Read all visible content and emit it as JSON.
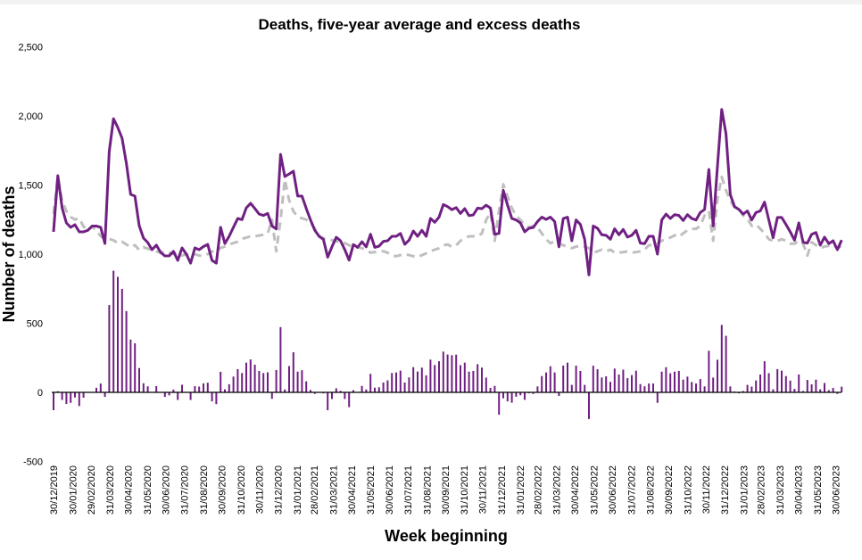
{
  "chart_data": {
    "type": "line",
    "title": "Deaths, five-year average and excess deaths",
    "xlabel": "Week beginning",
    "ylabel": "Number of deaths",
    "ylim": [
      -500,
      2500
    ],
    "yticks": [
      2500,
      2000,
      1500,
      1000,
      500,
      0,
      -500
    ],
    "ytick_labels": [
      "2,500",
      "2,000",
      "1,500",
      "1,000",
      "500",
      "0",
      "-500"
    ],
    "grid": false,
    "legend": "none",
    "x_start": "30/12/2019",
    "x_interval": "weekly",
    "xtick_labels": [
      "30/12/2019",
      "30/01/2020",
      "29/02/2020",
      "31/03/2020",
      "30/04/2020",
      "31/05/2020",
      "30/06/2020",
      "31/07/2020",
      "31/08/2020",
      "30/09/2020",
      "31/10/2020",
      "30/11/2020",
      "31/12/2020",
      "31/01/2021",
      "28/02/2021",
      "31/03/2021",
      "30/04/2021",
      "31/05/2021",
      "30/06/2021",
      "31/07/2021",
      "31/08/2021",
      "30/09/2021",
      "31/10/2021",
      "30/11/2021",
      "31/12/2021",
      "31/01/2022",
      "28/02/2022",
      "31/03/2022",
      "30/04/2022",
      "31/05/2022",
      "30/06/2022",
      "31/07/2022",
      "31/08/2022",
      "30/09/2022",
      "31/10/2022",
      "30/11/2022",
      "31/12/2022",
      "31/01/2023",
      "28/02/2023",
      "31/03/2023",
      "30/04/2023",
      "31/05/2023",
      "30/06/2023"
    ],
    "colors": {
      "deaths": "#702082",
      "average": "#bfbfbf",
      "excess": "#702082",
      "zero_line": "#000000"
    },
    "series": [
      {
        "key": "deaths",
        "style": "solid-line",
        "values": [
          1161,
          1568,
          1335,
          1226,
          1194,
          1213,
          1161,
          1161,
          1172,
          1203,
          1203,
          1194,
          1077,
          1742,
          1980,
          1916,
          1839,
          1658,
          1432,
          1420,
          1206,
          1116,
          1084,
          1032,
          1065,
          1013,
          987,
          988,
          1020,
          955,
          1045,
          1000,
          935,
          1045,
          1032,
          1055,
          1070,
          955,
          935,
          1194,
          1077,
          1129,
          1194,
          1258,
          1250,
          1335,
          1368,
          1330,
          1290,
          1280,
          1295,
          1203,
          1182,
          1722,
          1561,
          1580,
          1600,
          1420,
          1420,
          1330,
          1247,
          1172,
          1129,
          1107,
          978,
          1053,
          1122,
          1097,
          1032,
          957,
          1069,
          1049,
          1090,
          1053,
          1144,
          1049,
          1058,
          1092,
          1097,
          1129,
          1129,
          1150,
          1071,
          1101,
          1167,
          1129,
          1172,
          1129,
          1258,
          1230,
          1268,
          1359,
          1344,
          1322,
          1337,
          1294,
          1329,
          1279,
          1284,
          1333,
          1329,
          1354,
          1333,
          1144,
          1150,
          1462,
          1354,
          1258,
          1247,
          1226,
          1161,
          1187,
          1193,
          1236,
          1268,
          1251,
          1268,
          1236,
          1053,
          1258,
          1268,
          1097,
          1247,
          1215,
          1108,
          850,
          1204,
          1187,
          1140,
          1136,
          1108,
          1183,
          1140,
          1179,
          1123,
          1136,
          1172,
          1080,
          1076,
          1129,
          1129,
          1000,
          1247,
          1290,
          1258,
          1286,
          1280,
          1243,
          1286,
          1258,
          1247,
          1301,
          1323,
          1613,
          1204,
          1634,
          2047,
          1871,
          1430,
          1344,
          1323,
          1290,
          1312,
          1247,
          1301,
          1312,
          1376,
          1247,
          1119,
          1265,
          1265,
          1215,
          1161,
          1101,
          1226,
          1086,
          1080,
          1144,
          1157,
          1065,
          1123,
          1076,
          1097,
          1032,
          1101
        ]
      },
      {
        "key": "average",
        "style": "dashed-line",
        "values": [
          1290,
          1560,
          1390,
          1310,
          1270,
          1250,
          1260,
          1200,
          1170,
          1200,
          1170,
          1130,
          1110,
          1110,
          1100,
          1080,
          1090,
          1070,
          1050,
          1065,
          1030,
          1050,
          1040,
          1030,
          1020,
          1010,
          1020,
          1010,
          1000,
          1010,
          990,
          1000,
          990,
          1000,
          990,
          990,
          1000,
          1020,
          1020,
          1045,
          1055,
          1070,
          1080,
          1090,
          1110,
          1120,
          1130,
          1130,
          1135,
          1140,
          1150,
          1250,
          1020,
          1250,
          1540,
          1390,
          1310,
          1270,
          1260,
          1250,
          1230,
          1183,
          1129,
          1114,
          1107,
          1101,
          1092,
          1086,
          1080,
          1064,
          1053,
          1049,
          1043,
          1032,
          1010,
          1015,
          1021,
          1021,
          1010,
          989,
          985,
          993,
          1000,
          993,
          985,
          978,
          993,
          1006,
          1021,
          1032,
          1043,
          1064,
          1070,
          1053,
          1064,
          1097,
          1114,
          1129,
          1129,
          1129,
          1150,
          1247,
          1301,
          1097,
          1312,
          1505,
          1419,
          1333,
          1279,
          1247,
          1215,
          1193,
          1204,
          1193,
          1150,
          1107,
          1079,
          1092,
          1079,
          1064,
          1053,
          1043,
          1054,
          1060,
          1054,
          1043,
          1011,
          1020,
          1032,
          1020,
          1032,
          1011,
          1011,
          1015,
          1020,
          1011,
          1015,
          1020,
          1032,
          1065,
          1065,
          1076,
          1097,
          1108,
          1120,
          1136,
          1125,
          1151,
          1172,
          1183,
          1183,
          1205,
          1280,
          1312,
          1097,
          1398,
          1559,
          1462,
          1387,
          1338,
          1330,
          1280,
          1258,
          1205,
          1215,
          1183,
          1151,
          1108,
          1097,
          1097,
          1108,
          1097,
          1076,
          1076,
          1097,
          1076,
          990,
          1086,
          1065,
          1043,
          1055,
          1060,
          1065,
          1043,
          1060
        ]
      },
      {
        "key": "excess",
        "style": "bar",
        "derived_from": "deaths minus average"
      }
    ]
  }
}
